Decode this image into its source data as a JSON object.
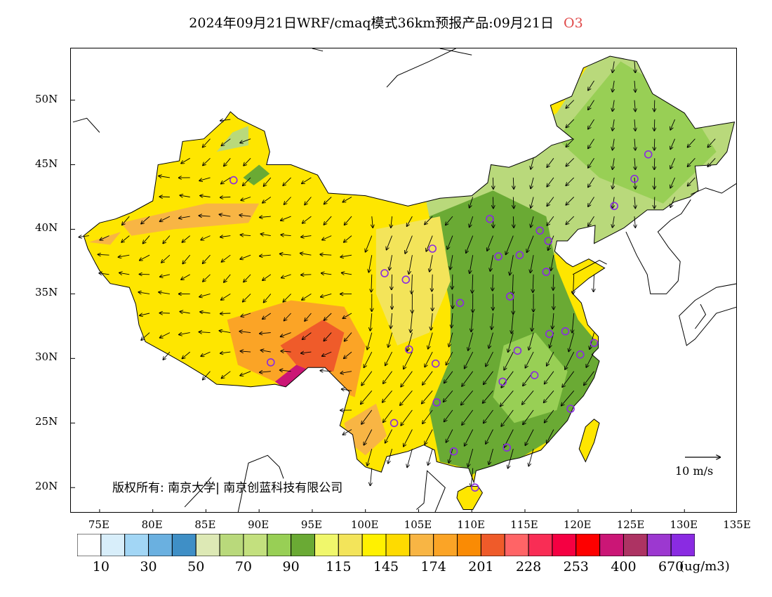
{
  "title": {
    "main": "2024年09月21日WRF/cmaq模式36km预报产品:09月21日",
    "species": "O3",
    "species_color": "#e04a4a"
  },
  "axes": {
    "lat_labels": [
      "50N",
      "45N",
      "40N",
      "35N",
      "30N",
      "25N",
      "20N"
    ],
    "lon_labels": [
      "75E",
      "80E",
      "85E",
      "90E",
      "95E",
      "100E",
      "105E",
      "110E",
      "115E",
      "120E",
      "125E",
      "130E",
      "135E"
    ]
  },
  "copyright": "版权所有: 南京大学| 南京创蓝科技有限公司",
  "wind_scale": {
    "label": "10 m/s"
  },
  "legend": {
    "colors": [
      "#ffffff",
      "#d8eefa",
      "#a2d6f5",
      "#6ab0e0",
      "#3f8fc6",
      "#dde9b5",
      "#b9d97b",
      "#c3e07e",
      "#98cf55",
      "#6aaa34",
      "#f0f76b",
      "#f3e45a",
      "#fff100",
      "#fedb00",
      "#f8b544",
      "#fba426",
      "#fa8b04",
      "#ef5b2a",
      "#ff6466",
      "#f92d55",
      "#f50042",
      "#fe0000",
      "#cb1676",
      "#ad3363",
      "#9c38d0",
      "#8a2be2"
    ],
    "labels": [
      "10",
      "30",
      "50",
      "70",
      "90",
      "115",
      "145",
      "174",
      "201",
      "228",
      "253",
      "400",
      "670"
    ],
    "unit": "(ug/m3)"
  },
  "stations": [
    {
      "lon": 87.6,
      "lat": 43.8
    },
    {
      "lon": 101.8,
      "lat": 36.6
    },
    {
      "lon": 103.8,
      "lat": 36.1
    },
    {
      "lon": 106.3,
      "lat": 38.5
    },
    {
      "lon": 111.7,
      "lat": 40.8
    },
    {
      "lon": 112.5,
      "lat": 37.9
    },
    {
      "lon": 114.5,
      "lat": 38.0
    },
    {
      "lon": 116.4,
      "lat": 39.9
    },
    {
      "lon": 117.2,
      "lat": 39.1
    },
    {
      "lon": 123.4,
      "lat": 41.8
    },
    {
      "lon": 125.3,
      "lat": 43.9
    },
    {
      "lon": 126.6,
      "lat": 45.8
    },
    {
      "lon": 117.0,
      "lat": 36.7
    },
    {
      "lon": 113.6,
      "lat": 34.8
    },
    {
      "lon": 108.9,
      "lat": 34.3
    },
    {
      "lon": 104.1,
      "lat": 30.7
    },
    {
      "lon": 106.6,
      "lat": 29.6
    },
    {
      "lon": 91.1,
      "lat": 29.7
    },
    {
      "lon": 106.7,
      "lat": 26.6
    },
    {
      "lon": 102.7,
      "lat": 25.0
    },
    {
      "lon": 108.3,
      "lat": 22.8
    },
    {
      "lon": 113.3,
      "lat": 23.1
    },
    {
      "lon": 110.3,
      "lat": 20.0
    },
    {
      "lon": 112.9,
      "lat": 28.2
    },
    {
      "lon": 115.9,
      "lat": 28.7
    },
    {
      "lon": 114.3,
      "lat": 30.6
    },
    {
      "lon": 117.3,
      "lat": 31.9
    },
    {
      "lon": 118.8,
      "lat": 32.1
    },
    {
      "lon": 120.2,
      "lat": 30.3
    },
    {
      "lon": 121.5,
      "lat": 31.2
    },
    {
      "lon": 119.3,
      "lat": 26.1
    }
  ]
}
